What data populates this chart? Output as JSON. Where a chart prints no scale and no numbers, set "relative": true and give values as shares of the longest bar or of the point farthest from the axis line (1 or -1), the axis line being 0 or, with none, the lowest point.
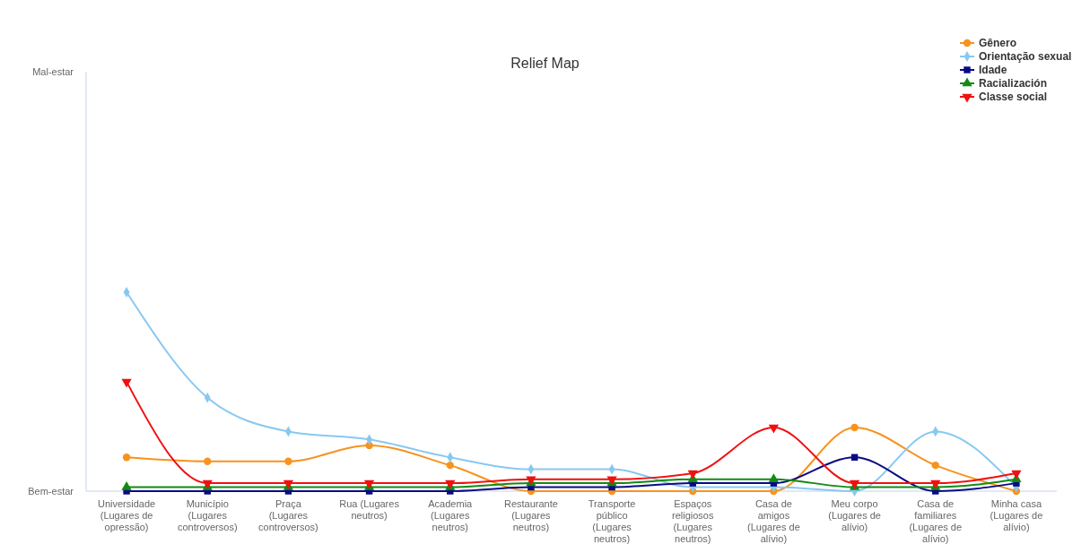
{
  "chart_data": {
    "type": "line",
    "title": "Relief Map",
    "relative": true,
    "categories": [
      "Universidade (Lugares de opressão)",
      "Município (Lugares controversos)",
      "Praça (Lugares controversos)",
      "Rua (Lugares neutros)",
      "Academia (Lugares neutros)",
      "Restaurante (Lugares neutros)",
      "Transporte público (Lugares neutros)",
      "Espaços religiosos (Lugares neutros)",
      "Casa de amigos (Lugares de alívio)",
      "Meu corpo (Lugares de alívio)",
      "Casa de familiares (Lugares de alívio)",
      "Minha casa (Lugares de alívio)"
    ],
    "annotations": [
      "Mal-estar",
      "Bem-estar"
    ],
    "legend": "top right",
    "series": [
      {
        "name": "Gênero",
        "color": "#f7931e",
        "marker": "circle",
        "values": [
          0.17,
          0.15,
          0.15,
          0.23,
          0.13,
          0,
          0,
          0,
          0,
          0.32,
          0.13,
          0
        ]
      },
      {
        "name": "Orientação sexual",
        "color": "#88c8f0",
        "marker": "diamond",
        "values": [
          1,
          0.47,
          0.3,
          0.26,
          0.17,
          0.11,
          0.11,
          0.02,
          0.02,
          0,
          0.3,
          0.02
        ]
      },
      {
        "name": "Idade",
        "color": "#0a0a85",
        "marker": "square",
        "values": [
          0,
          0,
          0,
          0,
          0,
          0.02,
          0.02,
          0.04,
          0.04,
          0.17,
          0,
          0.04
        ]
      },
      {
        "name": "Racialización",
        "color": "#138a13",
        "marker": "triangle",
        "values": [
          0.02,
          0.02,
          0.02,
          0.02,
          0.02,
          0.04,
          0.04,
          0.06,
          0.06,
          0.02,
          0.02,
          0.06
        ]
      },
      {
        "name": "Classe social",
        "color": "#f01010",
        "marker": "triangle-down",
        "values": [
          0.55,
          0.04,
          0.04,
          0.04,
          0.04,
          0.06,
          0.06,
          0.09,
          0.32,
          0.04,
          0.04,
          0.09
        ]
      }
    ]
  }
}
